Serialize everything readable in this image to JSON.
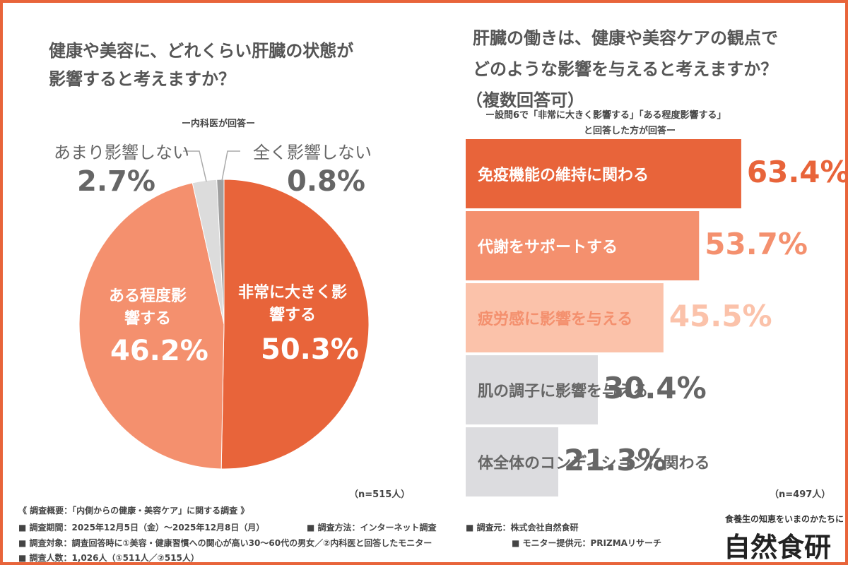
{
  "chart_data": [
    {
      "type": "pie",
      "title": [
        "健康や美容に、どれくらい肝臓の状態が",
        "影響すると考えますか？"
      ],
      "subtitle": "ー内科医が回答ー",
      "categories": [
        "非常に大きく影響する",
        "ある程度影響する",
        "あまり影響しない",
        "全く影響しない"
      ],
      "values": [
        50.3,
        46.2,
        2.7,
        0.8
      ],
      "value_labels": [
        "50.3%",
        "46.2%",
        "2.7%",
        "0.8%"
      ],
      "colors": [
        "#e8643a",
        "#f4906e",
        "#dcdcdc",
        "#a0a0a0"
      ],
      "note": "（n=515人）"
    },
    {
      "type": "hbar",
      "title": [
        "肝臓の働きは、健康や美容ケアの観点で",
        "どのような影響を与えると考えますか？",
        "（複数回答可）"
      ],
      "subtitle": [
        "ー設問6で「非常に大きく影響する」「ある程度影響する」",
        "と回答した方が回答ー"
      ],
      "categories": [
        "免疫機能の維持に関わる",
        "代謝をサポートする",
        "疲労感に影響を与える",
        "肌の調子に影響を与える",
        "体全体のコンディションに関わる"
      ],
      "values": [
        63.4,
        53.7,
        45.5,
        30.4,
        21.3
      ],
      "value_labels": [
        "63.4%",
        "53.7%",
        "45.5%",
        "30.4%",
        "21.3%"
      ],
      "colors": [
        "#e8643a",
        "#f4906e",
        "#fbc2aa",
        "#dcdcdf",
        "#dcdcdf"
      ],
      "label_colors": [
        "#ffffff",
        "#ffffff",
        "#f4906e",
        "#666666",
        "#666666"
      ],
      "value_label_colors": [
        "#e8643a",
        "#f4906e",
        "#fbc2aa",
        "#666666",
        "#666666"
      ],
      "xlim": [
        0,
        80
      ],
      "note": "（n=497人）"
    }
  ],
  "footer": {
    "heading": "《 調査概要：「内側からの健康・美容ケア」に関する調査 》",
    "lines": [
      [
        "■ 調査期間：2025年12月5日（金）～2025年12月8日（月）",
        "■ 調査方法：インターネット調査",
        "■ 調査元：株式会社自然食研"
      ],
      [
        "■ 調査対象：調査回答時に①美容・健康習慣への関心が高い30～60代の男女／②内科医と回答したモニター",
        "■ モニター提供元：PRIZMAリサーチ"
      ],
      [
        "■ 調査人数：1,026人（①511人／②515人）"
      ]
    ]
  },
  "logo": {
    "tagline": "食養生の知恵をいまのかたちに",
    "name": "自然食研"
  }
}
